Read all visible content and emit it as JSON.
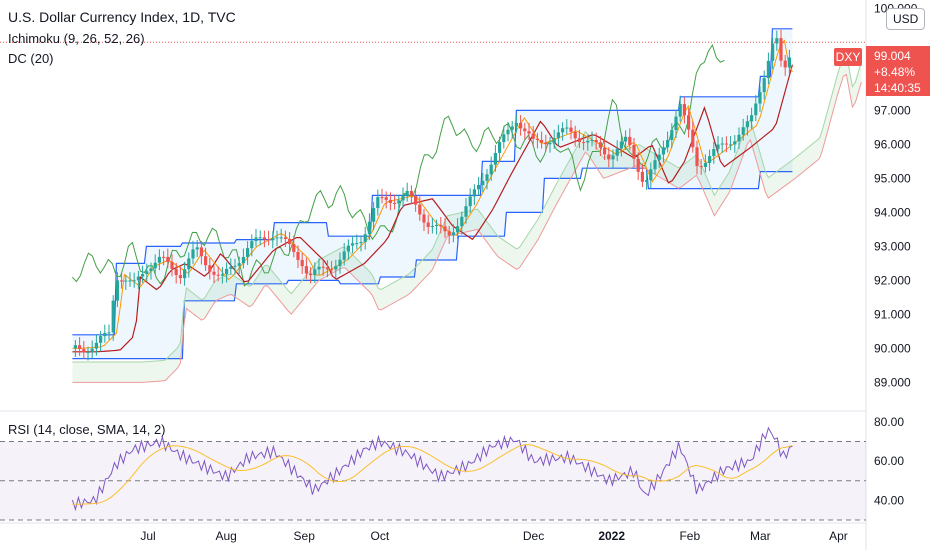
{
  "header": {
    "title": "U.S. Dollar Currency Index, 1D, TVC",
    "ichimoku_label": "Ichimoku (9, 26, 52, 26)",
    "dc_label": "DC (20)",
    "rsi_label": "RSI (14, close, SMA, 14, 2)"
  },
  "currency_button": "USD",
  "symbol_badge": "DXY",
  "last_price": {
    "price": "99.004",
    "change": "+8.48%",
    "countdown": "14:40:35"
  },
  "colors": {
    "up_candle": "#26a69a",
    "down_candle": "#ef5350",
    "donchian": "#2962ff",
    "tenkan": "#2962ff",
    "kijun": "#b71c1c",
    "lagging": "#43a047",
    "rsi_line": "#7e57c2",
    "rsi_sma": "#fbc02d",
    "price_tag": "#ef5350"
  },
  "chart_data": [
    {
      "type": "candlestick",
      "title": "U.S. Dollar Currency Index, 1D, TVC",
      "x_ticks": [
        "Jul",
        "Aug",
        "Sep",
        "Oct",
        "Dec",
        "2022",
        "Feb",
        "Mar",
        "Apr"
      ],
      "y_ticks": [
        "100.000",
        "97.000",
        "96.000",
        "95.000",
        "94.000",
        "93.000",
        "92.000",
        "91.000",
        "90.000",
        "89.000"
      ],
      "ylim": [
        88.6,
        100.0
      ],
      "last_price": 99.004,
      "price_path": [
        [
          "2021-06-01",
          90.0
        ],
        [
          "2021-06-10",
          90.05
        ],
        [
          "2021-06-16",
          90.5
        ],
        [
          "2021-06-18",
          92.2
        ],
        [
          "2021-06-25",
          91.8
        ],
        [
          "2021-06-30",
          92.4
        ],
        [
          "2021-07-06",
          92.6
        ],
        [
          "2021-07-14",
          92.2
        ],
        [
          "2021-07-20",
          92.9
        ],
        [
          "2021-07-30",
          92.0
        ],
        [
          "2021-08-10",
          93.0
        ],
        [
          "2021-08-20",
          93.4
        ],
        [
          "2021-08-31",
          92.6
        ],
        [
          "2021-09-03",
          92.1
        ],
        [
          "2021-09-15",
          92.6
        ],
        [
          "2021-09-24",
          93.3
        ],
        [
          "2021-09-30",
          94.3
        ],
        [
          "2021-10-12",
          94.5
        ],
        [
          "2021-10-20",
          93.7
        ],
        [
          "2021-10-28",
          93.3
        ],
        [
          "2021-11-05",
          94.2
        ],
        [
          "2021-11-12",
          95.2
        ],
        [
          "2021-11-24",
          96.8
        ],
        [
          "2021-12-01",
          96.0
        ],
        [
          "2021-12-15",
          96.4
        ],
        [
          "2021-12-31",
          95.7
        ],
        [
          "2022-01-07",
          96.1
        ],
        [
          "2022-01-14",
          94.9
        ],
        [
          "2022-01-20",
          95.6
        ],
        [
          "2022-01-28",
          97.2
        ],
        [
          "2022-02-04",
          95.4
        ],
        [
          "2022-02-15",
          96.0
        ],
        [
          "2022-02-25",
          96.6
        ],
        [
          "2022-03-04",
          98.5
        ],
        [
          "2022-03-07",
          99.2
        ],
        [
          "2022-03-10",
          98.0
        ],
        [
          "2022-03-14",
          99.0
        ]
      ],
      "donchian_upper": [
        [
          "2021-06-01",
          90.4
        ],
        [
          "2021-06-18",
          92.5
        ],
        [
          "2021-06-30",
          93.0
        ],
        [
          "2021-07-14",
          93.1
        ],
        [
          "2021-08-05",
          93.2
        ],
        [
          "2021-08-20",
          93.7
        ],
        [
          "2021-09-10",
          93.3
        ],
        [
          "2021-09-28",
          94.5
        ],
        [
          "2021-10-20",
          94.5
        ],
        [
          "2021-11-10",
          95.5
        ],
        [
          "2021-11-24",
          97.0
        ],
        [
          "2022-01-15",
          97.0
        ],
        [
          "2022-01-28",
          97.4
        ],
        [
          "2022-02-15",
          97.4
        ],
        [
          "2022-03-01",
          98.0
        ],
        [
          "2022-03-05",
          99.4
        ],
        [
          "2022-03-14",
          99.4
        ]
      ],
      "donchian_lower": [
        [
          "2021-06-01",
          89.7
        ],
        [
          "2021-07-05",
          89.7
        ],
        [
          "2021-07-15",
          91.4
        ],
        [
          "2021-08-05",
          91.9
        ],
        [
          "2021-08-25",
          92.0
        ],
        [
          "2021-09-15",
          91.9
        ],
        [
          "2021-10-01",
          92.1
        ],
        [
          "2021-10-15",
          92.6
        ],
        [
          "2021-11-01",
          93.3
        ],
        [
          "2021-11-20",
          94.0
        ],
        [
          "2021-12-05",
          95.0
        ],
        [
          "2021-12-20",
          95.3
        ],
        [
          "2022-01-15",
          94.7
        ],
        [
          "2022-02-15",
          94.7
        ],
        [
          "2022-03-01",
          95.2
        ],
        [
          "2022-03-14",
          95.7
        ]
      ],
      "rsi": {
        "ylim": [
          30,
          82
        ],
        "y_ticks": [
          "80.00",
          "60.00",
          "40.00"
        ],
        "bands": [
          70,
          50,
          30
        ],
        "rsi_path": [
          [
            "2021-06-01",
            38
          ],
          [
            "2021-06-10",
            40
          ],
          [
            "2021-06-18",
            58
          ],
          [
            "2021-06-25",
            66
          ],
          [
            "2021-07-06",
            70
          ],
          [
            "2021-07-14",
            63
          ],
          [
            "2021-07-22",
            58
          ],
          [
            "2021-08-01",
            52
          ],
          [
            "2021-08-10",
            62
          ],
          [
            "2021-08-20",
            65
          ],
          [
            "2021-09-01",
            50
          ],
          [
            "2021-09-05",
            45
          ],
          [
            "2021-09-15",
            55
          ],
          [
            "2021-09-25",
            66
          ],
          [
            "2021-10-01",
            70
          ],
          [
            "2021-10-12",
            64
          ],
          [
            "2021-10-25",
            52
          ],
          [
            "2021-11-05",
            58
          ],
          [
            "2021-11-15",
            68
          ],
          [
            "2021-11-24",
            71
          ],
          [
            "2021-12-01",
            60
          ],
          [
            "2021-12-15",
            62
          ],
          [
            "2021-12-31",
            50
          ],
          [
            "2022-01-10",
            55
          ],
          [
            "2022-01-14",
            42
          ],
          [
            "2022-01-20",
            52
          ],
          [
            "2022-01-28",
            68
          ],
          [
            "2022-02-04",
            45
          ],
          [
            "2022-02-15",
            56
          ],
          [
            "2022-02-25",
            60
          ],
          [
            "2022-03-04",
            76
          ],
          [
            "2022-03-07",
            72
          ],
          [
            "2022-03-10",
            62
          ],
          [
            "2022-03-14",
            68
          ]
        ]
      }
    }
  ]
}
